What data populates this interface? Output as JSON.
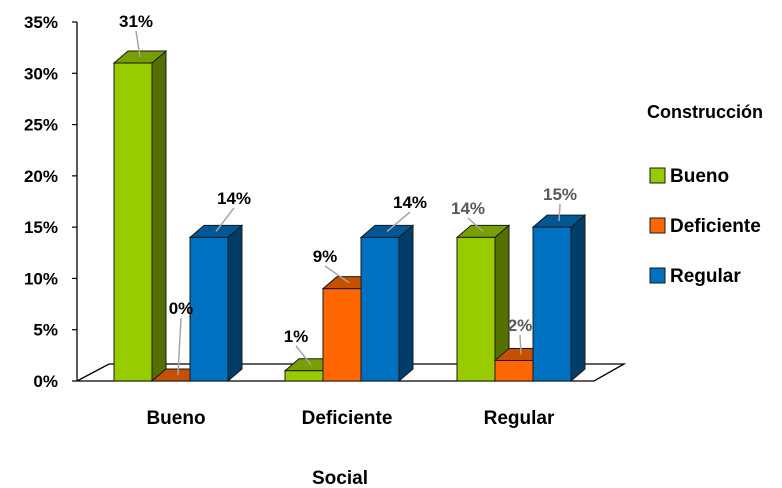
{
  "chart_data": {
    "type": "bar",
    "categories": [
      "Bueno",
      "Deficiente",
      "Regular"
    ],
    "xlabel": "Social",
    "ylabel": "",
    "ylim": [
      0,
      35
    ],
    "y_ticks": [
      "0%",
      "5%",
      "10%",
      "15%",
      "20%",
      "25%",
      "30%",
      "35%"
    ],
    "grid": false,
    "legend": {
      "title": "Construcción",
      "position": "right"
    },
    "series": [
      {
        "name": "Bueno",
        "color": "#99CC00",
        "values": [
          31,
          1,
          14
        ],
        "labels": [
          "31%",
          "1%",
          "14%"
        ]
      },
      {
        "name": "Deficiente",
        "color": "#FF6600",
        "values": [
          0,
          9,
          2
        ],
        "labels": [
          "0%",
          "9%",
          "2%"
        ]
      },
      {
        "name": "Regular",
        "color": "#0070C0",
        "values": [
          14,
          14,
          15
        ],
        "labels": [
          "14%",
          "14%",
          "15%"
        ]
      }
    ]
  }
}
